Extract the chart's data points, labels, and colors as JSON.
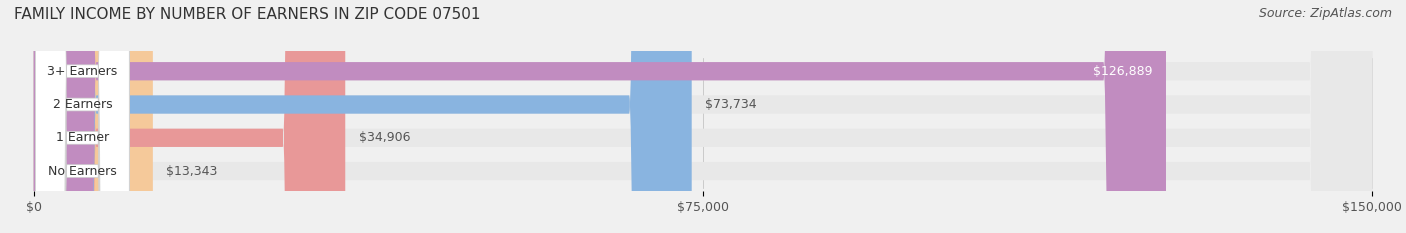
{
  "title": "FAMILY INCOME BY NUMBER OF EARNERS IN ZIP CODE 07501",
  "source": "Source: ZipAtlas.com",
  "categories": [
    "No Earners",
    "1 Earner",
    "2 Earners",
    "3+ Earners"
  ],
  "values": [
    13343,
    34906,
    73734,
    126889
  ],
  "bar_colors": [
    "#f5c99a",
    "#e89898",
    "#89b4e0",
    "#c18cc0"
  ],
  "bar_edge_colors": [
    "#e8a870",
    "#d07070",
    "#6090c8",
    "#a068a8"
  ],
  "label_colors": [
    "#555555",
    "#555555",
    "#555555",
    "#ffffff"
  ],
  "value_labels": [
    "$13,343",
    "$34,906",
    "$73,734",
    "$126,889"
  ],
  "xlim": [
    0,
    150000
  ],
  "xticks": [
    0,
    75000,
    150000
  ],
  "xtick_labels": [
    "$0",
    "$75,000",
    "$150,000"
  ],
  "background_color": "#f0f0f0",
  "bar_bg_color": "#e8e8e8",
  "title_fontsize": 11,
  "source_fontsize": 9,
  "label_fontsize": 9,
  "value_fontsize": 9,
  "tick_fontsize": 9,
  "fig_width": 14.06,
  "fig_height": 2.33
}
